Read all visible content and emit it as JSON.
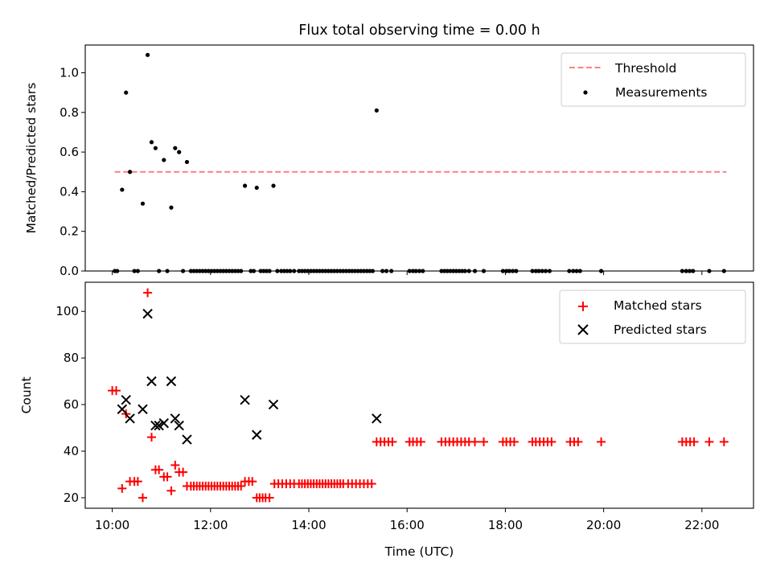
{
  "chart_data": [
    {
      "type": "scatter",
      "title": "Flux total observing time = 0.00 h",
      "xlabel": "",
      "ylabel": "Matched/Predicted stars",
      "xlim_hours": [
        9.45,
        23.05
      ],
      "ylim": [
        0,
        1.14
      ],
      "yticks": [
        0.0,
        0.2,
        0.4,
        0.6,
        0.8,
        1.0
      ],
      "ytick_labels": [
        "0.0",
        "0.2",
        "0.4",
        "0.6",
        "0.8",
        "1.0"
      ],
      "legend_position": "top-right",
      "grid": false,
      "threshold": {
        "name": "Threshold",
        "value": 0.5,
        "x_start": 10.05,
        "x_end": 22.5,
        "color": "#ff7f7f",
        "style": "dashed"
      },
      "series": [
        {
          "name": "Measurements",
          "color": "#000000",
          "marker": "dot",
          "points": [
            [
              10.05,
              0.0
            ],
            [
              10.1,
              0.0
            ],
            [
              10.2,
              0.41
            ],
            [
              10.28,
              0.9
            ],
            [
              10.36,
              0.5
            ],
            [
              10.45,
              0.0
            ],
            [
              10.52,
              0.0
            ],
            [
              10.62,
              0.34
            ],
            [
              10.72,
              1.09
            ],
            [
              10.8,
              0.65
            ],
            [
              10.88,
              0.62
            ],
            [
              10.95,
              0.0
            ],
            [
              11.05,
              0.56
            ],
            [
              11.12,
              0.0
            ],
            [
              11.2,
              0.32
            ],
            [
              11.28,
              0.62
            ],
            [
              11.36,
              0.6
            ],
            [
              11.44,
              0.0
            ],
            [
              11.52,
              0.55
            ],
            [
              11.6,
              0.0
            ],
            [
              11.66,
              0.0
            ],
            [
              11.72,
              0.0
            ],
            [
              11.78,
              0.0
            ],
            [
              11.84,
              0.0
            ],
            [
              11.9,
              0.0
            ],
            [
              11.96,
              0.0
            ],
            [
              12.02,
              0.0
            ],
            [
              12.08,
              0.0
            ],
            [
              12.14,
              0.0
            ],
            [
              12.2,
              0.0
            ],
            [
              12.26,
              0.0
            ],
            [
              12.32,
              0.0
            ],
            [
              12.38,
              0.0
            ],
            [
              12.44,
              0.0
            ],
            [
              12.5,
              0.0
            ],
            [
              12.56,
              0.0
            ],
            [
              12.62,
              0.0
            ],
            [
              12.7,
              0.43
            ],
            [
              12.82,
              0.0
            ],
            [
              12.88,
              0.0
            ],
            [
              12.94,
              0.42
            ],
            [
              13.02,
              0.0
            ],
            [
              13.08,
              0.0
            ],
            [
              13.14,
              0.0
            ],
            [
              13.2,
              0.0
            ],
            [
              13.28,
              0.43
            ],
            [
              13.36,
              0.0
            ],
            [
              13.44,
              0.0
            ],
            [
              13.5,
              0.0
            ],
            [
              13.56,
              0.0
            ],
            [
              13.62,
              0.0
            ],
            [
              13.7,
              0.0
            ],
            [
              13.8,
              0.0
            ],
            [
              13.86,
              0.0
            ],
            [
              13.92,
              0.0
            ],
            [
              13.98,
              0.0
            ],
            [
              14.04,
              0.0
            ],
            [
              14.1,
              0.0
            ],
            [
              14.16,
              0.0
            ],
            [
              14.22,
              0.0
            ],
            [
              14.28,
              0.0
            ],
            [
              14.34,
              0.0
            ],
            [
              14.4,
              0.0
            ],
            [
              14.46,
              0.0
            ],
            [
              14.52,
              0.0
            ],
            [
              14.58,
              0.0
            ],
            [
              14.64,
              0.0
            ],
            [
              14.7,
              0.0
            ],
            [
              14.76,
              0.0
            ],
            [
              14.82,
              0.0
            ],
            [
              14.88,
              0.0
            ],
            [
              14.94,
              0.0
            ],
            [
              15.0,
              0.0
            ],
            [
              15.06,
              0.0
            ],
            [
              15.12,
              0.0
            ],
            [
              15.18,
              0.0
            ],
            [
              15.24,
              0.0
            ],
            [
              15.3,
              0.0
            ],
            [
              15.38,
              0.81
            ],
            [
              15.5,
              0.0
            ],
            [
              15.58,
              0.0
            ],
            [
              15.68,
              0.0
            ],
            [
              16.05,
              0.0
            ],
            [
              16.12,
              0.0
            ],
            [
              16.18,
              0.0
            ],
            [
              16.25,
              0.0
            ],
            [
              16.32,
              0.0
            ],
            [
              16.7,
              0.0
            ],
            [
              16.76,
              0.0
            ],
            [
              16.82,
              0.0
            ],
            [
              16.88,
              0.0
            ],
            [
              16.94,
              0.0
            ],
            [
              17.0,
              0.0
            ],
            [
              17.06,
              0.0
            ],
            [
              17.12,
              0.0
            ],
            [
              17.18,
              0.0
            ],
            [
              17.26,
              0.0
            ],
            [
              17.38,
              0.0
            ],
            [
              17.56,
              0.0
            ],
            [
              17.95,
              0.0
            ],
            [
              18.02,
              0.0
            ],
            [
              18.08,
              0.0
            ],
            [
              18.15,
              0.0
            ],
            [
              18.22,
              0.0
            ],
            [
              18.55,
              0.0
            ],
            [
              18.62,
              0.0
            ],
            [
              18.68,
              0.0
            ],
            [
              18.75,
              0.0
            ],
            [
              18.82,
              0.0
            ],
            [
              18.9,
              0.0
            ],
            [
              19.3,
              0.0
            ],
            [
              19.38,
              0.0
            ],
            [
              19.45,
              0.0
            ],
            [
              19.52,
              0.0
            ],
            [
              19.95,
              0.0
            ],
            [
              21.6,
              0.0
            ],
            [
              21.68,
              0.0
            ],
            [
              21.75,
              0.0
            ],
            [
              21.82,
              0.0
            ],
            [
              22.15,
              0.0
            ],
            [
              22.45,
              0.0
            ]
          ]
        }
      ]
    },
    {
      "type": "scatter",
      "title": "",
      "xlabel": "Time (UTC)",
      "ylabel": "Count",
      "xlim_hours": [
        9.45,
        23.05
      ],
      "ylim": [
        15.5,
        112.5
      ],
      "yticks": [
        20,
        40,
        60,
        80,
        100
      ],
      "ytick_labels": [
        "20",
        "40",
        "60",
        "80",
        "100"
      ],
      "xticks_hours": [
        10,
        12,
        14,
        16,
        18,
        20,
        22
      ],
      "xtick_labels": [
        "10:00",
        "12:00",
        "14:00",
        "16:00",
        "18:00",
        "20:00",
        "22:00"
      ],
      "legend_position": "top-right",
      "grid": false,
      "series": [
        {
          "name": "Matched stars",
          "color": "#ff0000",
          "marker": "plus",
          "points": [
            [
              10.0,
              66
            ],
            [
              10.08,
              66
            ],
            [
              10.2,
              24
            ],
            [
              10.28,
              56
            ],
            [
              10.36,
              27
            ],
            [
              10.45,
              27
            ],
            [
              10.52,
              27
            ],
            [
              10.62,
              20
            ],
            [
              10.72,
              108
            ],
            [
              10.8,
              46
            ],
            [
              10.88,
              32
            ],
            [
              10.95,
              32
            ],
            [
              11.05,
              29
            ],
            [
              11.12,
              29
            ],
            [
              11.2,
              23
            ],
            [
              11.28,
              34
            ],
            [
              11.36,
              31
            ],
            [
              11.44,
              31
            ],
            [
              11.52,
              25
            ],
            [
              11.6,
              25
            ],
            [
              11.66,
              25
            ],
            [
              11.72,
              25
            ],
            [
              11.78,
              25
            ],
            [
              11.84,
              25
            ],
            [
              11.9,
              25
            ],
            [
              11.96,
              25
            ],
            [
              12.02,
              25
            ],
            [
              12.08,
              25
            ],
            [
              12.14,
              25
            ],
            [
              12.2,
              25
            ],
            [
              12.26,
              25
            ],
            [
              12.32,
              25
            ],
            [
              12.38,
              25
            ],
            [
              12.44,
              25
            ],
            [
              12.5,
              25
            ],
            [
              12.56,
              25
            ],
            [
              12.62,
              25
            ],
            [
              12.7,
              27
            ],
            [
              12.78,
              27
            ],
            [
              12.85,
              27
            ],
            [
              12.94,
              20
            ],
            [
              13.0,
              20
            ],
            [
              13.06,
              20
            ],
            [
              13.12,
              20
            ],
            [
              13.2,
              20
            ],
            [
              13.3,
              26
            ],
            [
              13.38,
              26
            ],
            [
              13.46,
              26
            ],
            [
              13.54,
              26
            ],
            [
              13.62,
              26
            ],
            [
              13.7,
              26
            ],
            [
              13.8,
              26
            ],
            [
              13.86,
              26
            ],
            [
              13.92,
              26
            ],
            [
              13.98,
              26
            ],
            [
              14.04,
              26
            ],
            [
              14.1,
              26
            ],
            [
              14.16,
              26
            ],
            [
              14.22,
              26
            ],
            [
              14.28,
              26
            ],
            [
              14.34,
              26
            ],
            [
              14.4,
              26
            ],
            [
              14.46,
              26
            ],
            [
              14.52,
              26
            ],
            [
              14.58,
              26
            ],
            [
              14.64,
              26
            ],
            [
              14.7,
              26
            ],
            [
              14.8,
              26
            ],
            [
              14.88,
              26
            ],
            [
              14.96,
              26
            ],
            [
              15.04,
              26
            ],
            [
              15.12,
              26
            ],
            [
              15.2,
              26
            ],
            [
              15.28,
              26
            ],
            [
              15.38,
              44
            ],
            [
              15.46,
              44
            ],
            [
              15.54,
              44
            ],
            [
              15.62,
              44
            ],
            [
              15.7,
              44
            ],
            [
              16.05,
              44
            ],
            [
              16.12,
              44
            ],
            [
              16.2,
              44
            ],
            [
              16.28,
              44
            ],
            [
              16.7,
              44
            ],
            [
              16.78,
              44
            ],
            [
              16.86,
              44
            ],
            [
              16.94,
              44
            ],
            [
              17.02,
              44
            ],
            [
              17.1,
              44
            ],
            [
              17.18,
              44
            ],
            [
              17.26,
              44
            ],
            [
              17.38,
              44
            ],
            [
              17.56,
              44
            ],
            [
              17.95,
              44
            ],
            [
              18.02,
              44
            ],
            [
              18.1,
              44
            ],
            [
              18.18,
              44
            ],
            [
              18.55,
              44
            ],
            [
              18.62,
              44
            ],
            [
              18.7,
              44
            ],
            [
              18.78,
              44
            ],
            [
              18.86,
              44
            ],
            [
              18.94,
              44
            ],
            [
              19.32,
              44
            ],
            [
              19.4,
              44
            ],
            [
              19.48,
              44
            ],
            [
              19.95,
              44
            ],
            [
              21.6,
              44
            ],
            [
              21.68,
              44
            ],
            [
              21.76,
              44
            ],
            [
              21.84,
              44
            ],
            [
              22.15,
              44
            ],
            [
              22.45,
              44
            ]
          ]
        },
        {
          "name": "Predicted stars",
          "color": "#000000",
          "marker": "x",
          "points": [
            [
              10.2,
              58
            ],
            [
              10.28,
              62
            ],
            [
              10.36,
              54
            ],
            [
              10.62,
              58
            ],
            [
              10.72,
              99
            ],
            [
              10.8,
              70
            ],
            [
              10.88,
              51
            ],
            [
              10.95,
              51
            ],
            [
              11.05,
              52
            ],
            [
              11.2,
              70
            ],
            [
              11.28,
              54
            ],
            [
              11.36,
              51
            ],
            [
              11.52,
              45
            ],
            [
              12.7,
              62
            ],
            [
              12.94,
              47
            ],
            [
              13.28,
              60
            ],
            [
              15.38,
              54
            ]
          ]
        }
      ]
    }
  ]
}
